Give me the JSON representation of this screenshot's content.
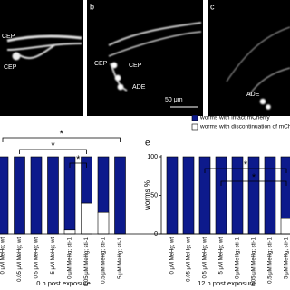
{
  "panels": [
    {
      "labels": [
        "CEP",
        "CEP"
      ]
    },
    {
      "letter": "b",
      "labels": [
        "CEP",
        "CEP",
        "ADE"
      ],
      "scale_bar": "50 μm"
    },
    {
      "letter": "c",
      "labels": [
        "ADE"
      ]
    }
  ],
  "chart_data": [
    {
      "type": "bar",
      "stacked": true,
      "title": "0 h post exposure",
      "categories": [
        "0 μM MeHg; wt",
        "0.05 μM MeHg; wt",
        "0.5 μM MeHg; wt",
        "5 μM MeHg; wt",
        "0 μM MeHg; sti-1",
        "0.05 μM MeHg; sti-1",
        "0.5 μM MeHg; sti-1",
        "5 μM MeHg; sti-1"
      ],
      "series": [
        {
          "name": "worms with intact mCherry",
          "color": "#0d1a8c",
          "values": [
            100,
            100,
            100,
            100,
            95,
            60,
            72,
            100
          ]
        },
        {
          "name": "worms with discontinuation of mCherry",
          "color": "#ffffff",
          "values": [
            0,
            0,
            0,
            0,
            5,
            40,
            28,
            0
          ]
        }
      ],
      "ylim": [
        0,
        100
      ],
      "annotations": [
        "*",
        "*",
        "*"
      ]
    },
    {
      "type": "bar",
      "stacked": true,
      "letter": "e",
      "title": "12 h post exposure",
      "ylabel": "worms %",
      "categories": [
        "0 μM MeHg; wt",
        "0.05 μM MeHg; wt",
        "0.5 μM MeHg; wt",
        "5 μM MeHg; wt",
        "0 μM MeHg; sti-1",
        "0.05 μM MeHg; sti-1",
        "0.5 μM MeHg; sti-1",
        "5 μM MeHg; sti-1"
      ],
      "series": [
        {
          "name": "worms with intact mCherry",
          "color": "#0d1a8c",
          "values": [
            100,
            100,
            100,
            100,
            100,
            100,
            100,
            80
          ]
        },
        {
          "name": "worms with discontinuation of mCherry",
          "color": "#ffffff",
          "values": [
            0,
            0,
            0,
            0,
            0,
            0,
            0,
            20
          ]
        }
      ],
      "ylim": [
        0,
        100
      ],
      "yticks": [
        0,
        50,
        100
      ],
      "annotations": [
        "*",
        "*"
      ],
      "legend": "top"
    }
  ]
}
